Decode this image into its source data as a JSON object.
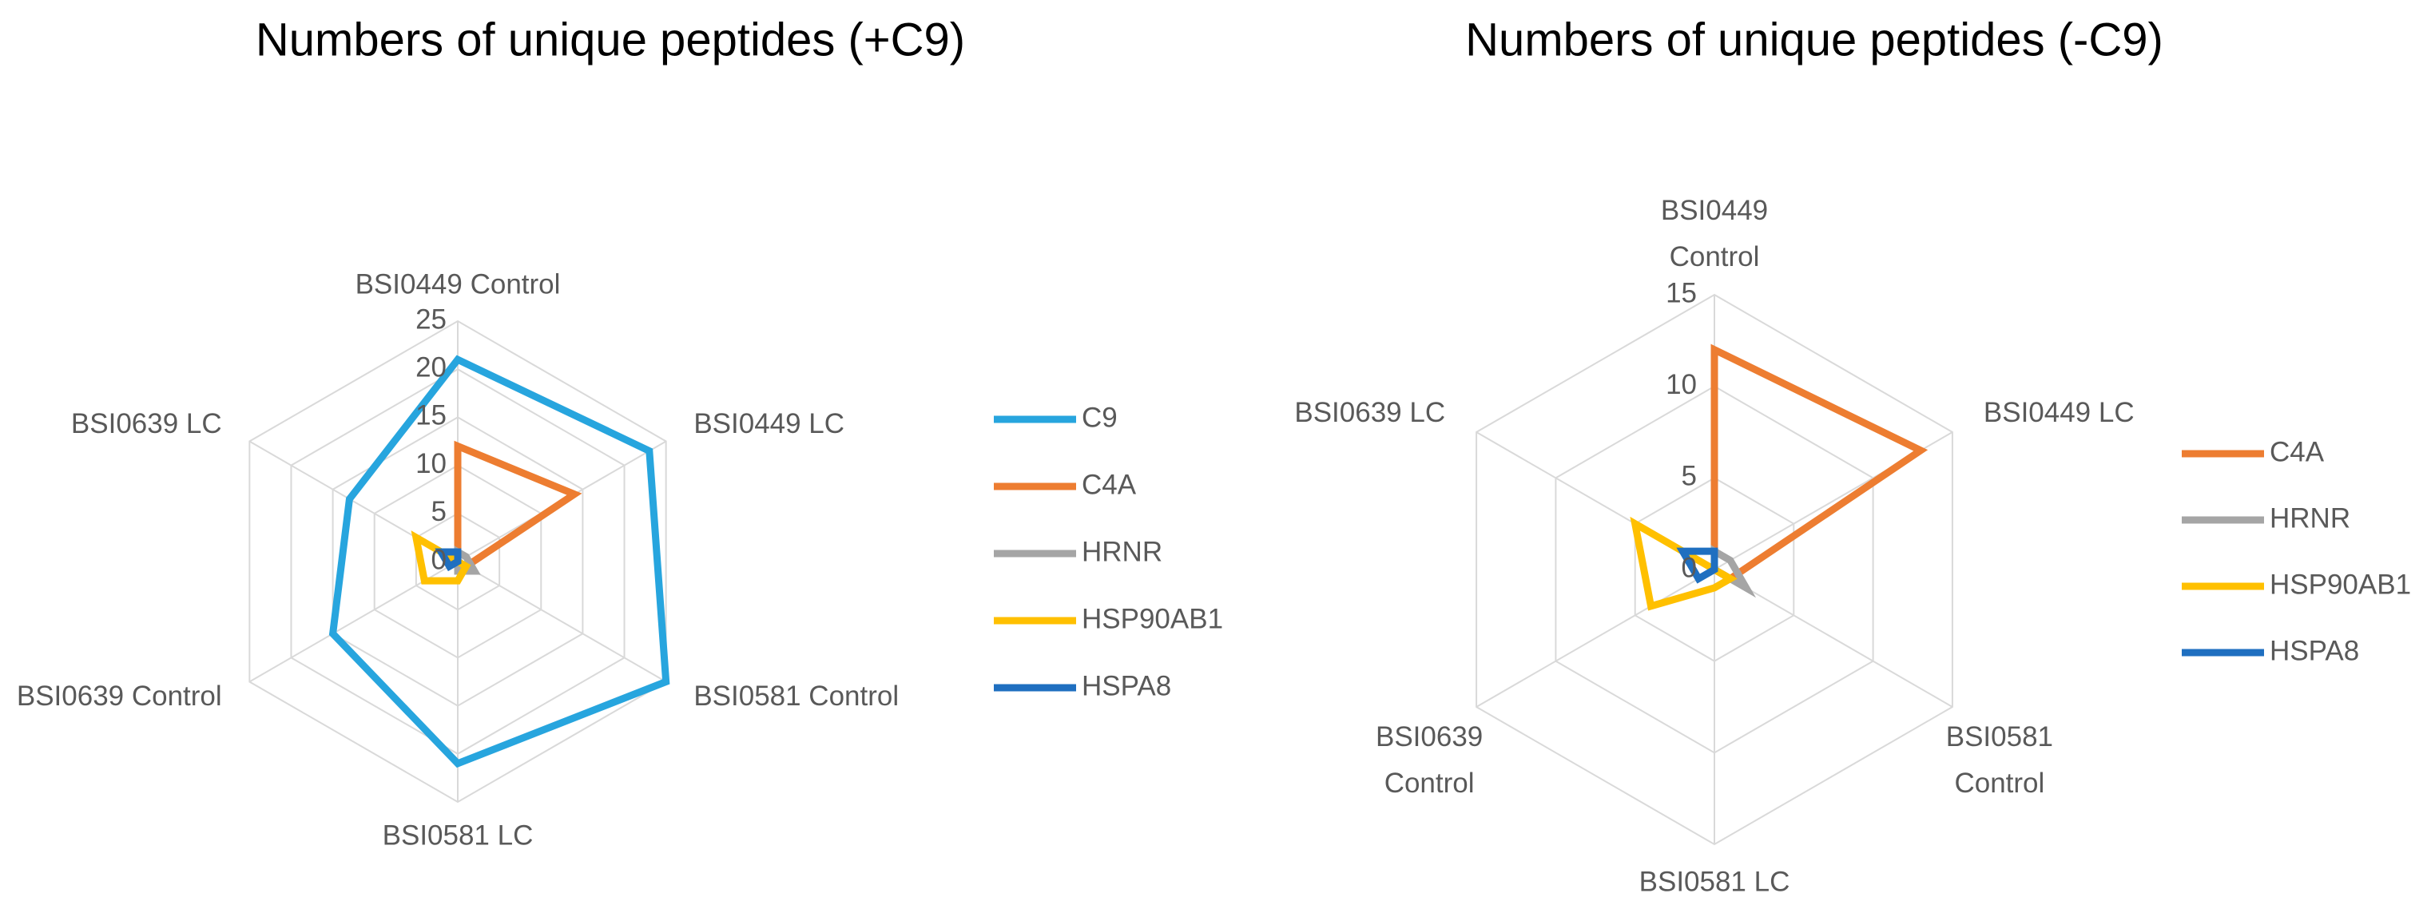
{
  "chart_data": [
    {
      "type": "radar",
      "title": "Numbers of unique peptides (+C9)",
      "categories": [
        "BSI0449 Control",
        "BSI0449 LC",
        "BSI0581 Control",
        "BSI0581 LC",
        "BSI0639 Control",
        "BSI0639 LC"
      ],
      "ylim": [
        0,
        25
      ],
      "yticks": [
        0,
        5,
        10,
        15,
        20,
        25
      ],
      "grid": true,
      "legend": "right",
      "series": [
        {
          "name": "C9",
          "color": "#27A5DE",
          "values": [
            21,
            23,
            25,
            21,
            15,
            13
          ]
        },
        {
          "name": "C4A",
          "color": "#ED7D31",
          "values": [
            12,
            14,
            1,
            0,
            0,
            0
          ]
        },
        {
          "name": "HRNR",
          "color": "#A5A5A5",
          "values": [
            1,
            1,
            2,
            1,
            0,
            0
          ]
        },
        {
          "name": "HSP90AB1",
          "color": "#FFC000",
          "values": [
            0,
            0,
            1,
            2,
            4,
            5
          ]
        },
        {
          "name": "HSPA8",
          "color": "#1F6FC0",
          "values": [
            1,
            0,
            0,
            0,
            1,
            2
          ]
        }
      ]
    },
    {
      "type": "radar",
      "title": "Numbers of unique peptides (-C9)",
      "categories": [
        "BSI0449 Control",
        "BSI0449 LC",
        "BSI0581 Control",
        "BSI0581 LC",
        "BSI0639 Control",
        "BSI0639 LC"
      ],
      "ylim": [
        0,
        15
      ],
      "yticks": [
        0,
        5,
        10,
        15
      ],
      "grid": true,
      "legend": "right",
      "series": [
        {
          "name": "C4A",
          "color": "#ED7D31",
          "values": [
            12,
            13,
            1,
            0,
            0,
            0
          ]
        },
        {
          "name": "HRNR",
          "color": "#A5A5A5",
          "values": [
            1,
            1,
            2,
            0,
            0,
            0
          ]
        },
        {
          "name": "HSP90AB1",
          "color": "#FFC000",
          "values": [
            0,
            0,
            1,
            1,
            4,
            5
          ]
        },
        {
          "name": "HSPA8",
          "color": "#1F6FC0",
          "values": [
            1,
            0,
            0,
            0,
            1,
            2
          ]
        }
      ]
    }
  ]
}
